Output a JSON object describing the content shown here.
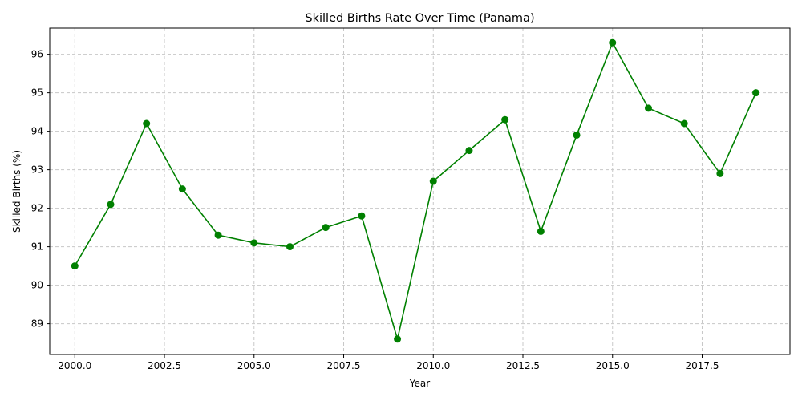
{
  "chart_data": {
    "type": "line",
    "title": "Skilled Births Rate Over Time (Panama)",
    "xlabel": "Year",
    "ylabel": "Skilled Births (%)",
    "xlim": [
      1999.3,
      2019.95
    ],
    "ylim": [
      88.2,
      96.68
    ],
    "x_ticks": [
      2000.0,
      2002.5,
      2005.0,
      2007.5,
      2010.0,
      2012.5,
      2015.0,
      2017.5
    ],
    "x_tick_labels": [
      "2000.0",
      "2002.5",
      "2005.0",
      "2007.5",
      "2010.0",
      "2012.5",
      "2015.0",
      "2017.5"
    ],
    "y_ticks": [
      89,
      90,
      91,
      92,
      93,
      94,
      95,
      96
    ],
    "y_tick_labels": [
      "89",
      "90",
      "91",
      "92",
      "93",
      "94",
      "95",
      "96"
    ],
    "grid": true,
    "line_color": "#008000",
    "grid_color": "#c8c8c8",
    "series": [
      {
        "x": [
          2000,
          2001,
          2002,
          2003,
          2004,
          2005,
          2006,
          2007,
          2008,
          2009,
          2010,
          2011,
          2012,
          2013,
          2014,
          2015,
          2016,
          2017,
          2018,
          2019
        ],
        "values": [
          90.5,
          92.1,
          94.2,
          92.5,
          91.3,
          91.1,
          91.0,
          91.5,
          91.8,
          88.6,
          92.7,
          93.5,
          94.3,
          91.4,
          93.9,
          96.3,
          94.6,
          94.2,
          92.9,
          95.0
        ]
      }
    ]
  }
}
